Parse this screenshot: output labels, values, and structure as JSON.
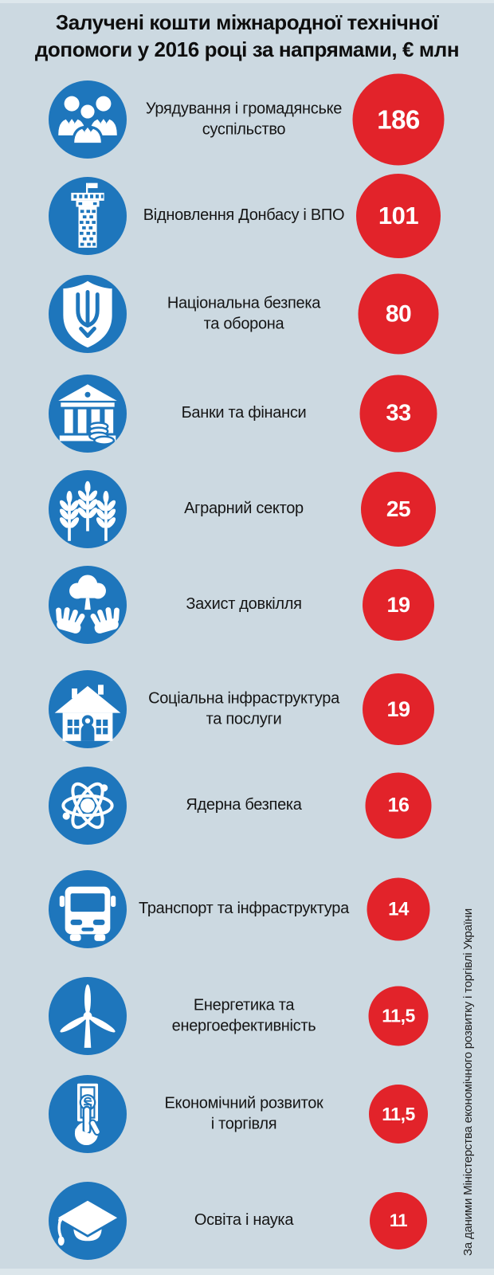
{
  "title": "Залучені кошти міжнародної технічної\nдопомоги у 2016 році за напрямами, € млн",
  "source_note": "За даними Міністерства економічного розвитку і торгівлі України",
  "colors": {
    "background": "#ccd9e1",
    "accent_blue": "#1e76bc",
    "accent_red": "#e2232a",
    "title_text": "#0e0e0e",
    "label_text": "#151515",
    "value_text": "#ffffff"
  },
  "rows": [
    {
      "icon": "people-group-icon",
      "label": "Урядування і громадянське\nсуспільство",
      "value": "186"
    },
    {
      "icon": "donbas-tower-icon",
      "label": "Відновлення Донбасу і ВПО",
      "value": "101"
    },
    {
      "icon": "trident-shield-icon",
      "label": "Національна безпека\nта оборона",
      "value": "80"
    },
    {
      "icon": "bank-icon",
      "label": "Банки та фінанси",
      "value": "33"
    },
    {
      "icon": "wheat-icon",
      "label": "Аграрний сектор",
      "value": "25"
    },
    {
      "icon": "hands-tree-icon",
      "label": "Захист довкілля",
      "value": "19"
    },
    {
      "icon": "house-icon",
      "label": "Соціальна інфраструктура\nта послуги",
      "value": "19"
    },
    {
      "icon": "atom-icon",
      "label": "Ядерна безпека",
      "value": "16"
    },
    {
      "icon": "bus-icon",
      "label": "Транспорт та інфраструктура",
      "value": "14"
    },
    {
      "icon": "wind-turbine-icon",
      "label": "Енергетика та\nенергоефективність",
      "value": "11,5"
    },
    {
      "icon": "money-hand-icon",
      "label": "Економічний розвиток\nі торгівля",
      "value": "11,5"
    },
    {
      "icon": "graduation-cap-icon",
      "label": "Освіта і наука",
      "value": "11"
    }
  ],
  "chart_data": {
    "type": "bar",
    "representation": "proportional-circles",
    "title": "Залучені кошти міжнародної технічної допомоги у 2016 році за напрямами, € млн",
    "unit": "€ млн",
    "categories": [
      "Урядування і громадянське суспільство",
      "Відновлення Донбасу і ВПО",
      "Національна безпека та оборона",
      "Банки та фінанси",
      "Аграрний сектор",
      "Захист довкілля",
      "Соціальна інфраструктура та послуги",
      "Ядерна безпека",
      "Транспорт та інфраструктура",
      "Енергетика та енергоефективність",
      "Економічний розвиток і торгівля",
      "Освіта і наука"
    ],
    "values": [
      186,
      101,
      80,
      33,
      25,
      19,
      19,
      16,
      14,
      11.5,
      11.5,
      11
    ],
    "source": "За даними Міністерства економічного розвитку і торгівлі України"
  }
}
